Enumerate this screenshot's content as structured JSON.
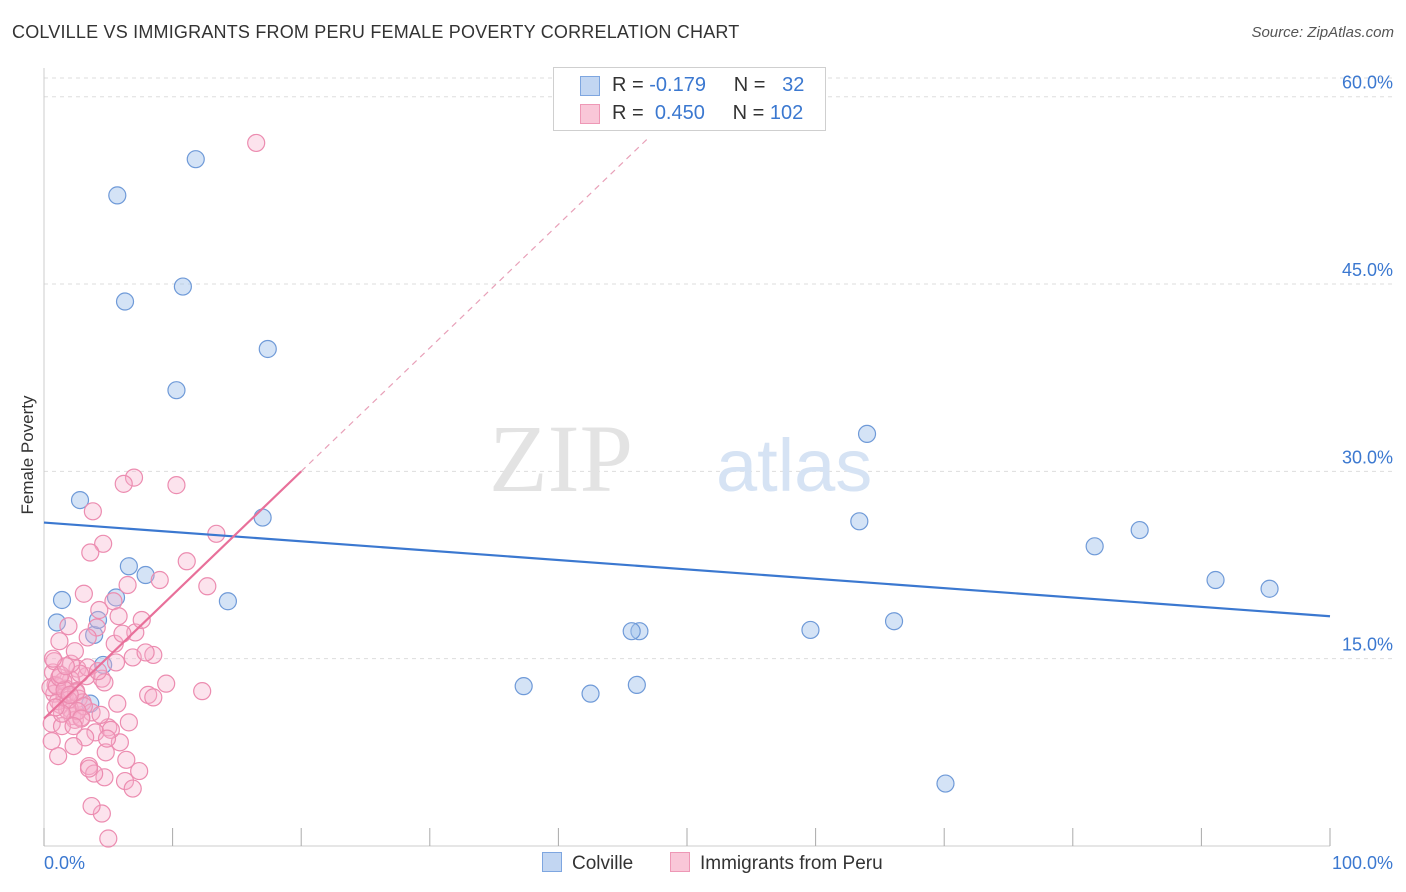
{
  "title": "COLVILLE VS IMMIGRANTS FROM PERU FEMALE POVERTY CORRELATION CHART",
  "source": "Source: ZipAtlas.com",
  "watermark": {
    "zip": "ZIP",
    "atlas": "atlas"
  },
  "legend": {
    "r_label": "R =",
    "n_label": "N =",
    "colville": {
      "r": "-0.179",
      "n": "32"
    },
    "peru": {
      "r": "0.450",
      "n": "102"
    }
  },
  "colors": {
    "colville": "#3b78d0",
    "peru": "#e8709a",
    "tick_label": "#3b78d0"
  },
  "chart_data": {
    "type": "scatter",
    "title": "COLVILLE VS IMMIGRANTS FROM PERU FEMALE POVERTY CORRELATION CHART",
    "xlabel": "",
    "ylabel": "Female Poverty",
    "xlim": [
      0,
      100
    ],
    "ylim": [
      0,
      61.5
    ],
    "x_tick_labels": [
      "0.0%",
      "100.0%"
    ],
    "y_ticks": [
      15,
      30,
      45,
      60
    ],
    "y_tick_labels": [
      "15.0%",
      "30.0%",
      "45.0%",
      "60.0%"
    ],
    "legend_position": "top-center",
    "series": [
      {
        "name": "Colville",
        "color": "#3b78d0",
        "trend": {
          "x0": 0,
          "y0": 25.9,
          "x1": 100,
          "y1": 18.4
        },
        "x": [
          11.8,
          5.7,
          10.8,
          6.3,
          17.4,
          10.3,
          2.8,
          17.0,
          1.4,
          6.6,
          7.9,
          14.3,
          5.6,
          3.9,
          1.0,
          4.2,
          4.6,
          3.6,
          42.5,
          37.3,
          46.3,
          59.6,
          64.0,
          95.3,
          85.2,
          70.1,
          91.1,
          66.1,
          81.7,
          63.4,
          45.7,
          46.1
        ],
        "y": [
          55.0,
          52.1,
          44.8,
          43.6,
          39.8,
          36.5,
          27.7,
          26.3,
          19.7,
          22.4,
          21.7,
          19.6,
          19.9,
          16.9,
          17.9,
          18.1,
          14.5,
          11.4,
          12.2,
          12.8,
          17.2,
          17.3,
          33.0,
          20.6,
          25.3,
          5.0,
          21.3,
          18.0,
          24.0,
          26.0,
          17.2,
          12.9
        ]
      },
      {
        "name": "Immigrants from Peru",
        "color": "#e8709a",
        "trend": {
          "x0": 0,
          "y0": 10.2,
          "x1": 20,
          "y1": 30.0,
          "dashed_to_x": 47,
          "dashed_to_y": 56.7
        },
        "x": [
          16.5,
          7.0,
          10.3,
          6.2,
          3.8,
          4.6,
          3.6,
          13.4,
          11.1,
          9.0,
          12.7,
          6.5,
          3.1,
          5.4,
          5.8,
          4.3,
          4.1,
          7.1,
          1.9,
          3.4,
          5.6,
          8.5,
          1.2,
          6.9,
          7.9,
          4.5,
          8.1,
          0.7,
          2.6,
          3.3,
          2.1,
          4.7,
          0.9,
          1.7,
          2.5,
          0.8,
          1.6,
          2.7,
          3.0,
          1.3,
          2.0,
          3.7,
          2.2,
          2.4,
          0.6,
          1.4,
          0.5,
          1.1,
          1.8,
          2.9,
          5.0,
          4.0,
          3.2,
          5.9,
          2.3,
          4.8,
          6.4,
          3.5,
          7.4,
          12.3,
          9.5,
          8.5,
          5.7,
          4.4,
          6.6,
          5.2,
          4.9,
          3.4,
          2.8,
          4.2,
          2.1,
          1.5,
          1.0,
          5.5,
          6.1,
          7.6,
          4.7,
          6.3,
          6.9,
          3.9,
          2.5,
          1.9,
          3.1,
          1.2,
          2.6,
          1.6,
          0.8,
          2.9,
          4.5,
          3.7,
          2.3,
          1.4,
          0.9,
          2.0,
          1.3,
          1.7,
          0.7,
          2.4,
          3.5,
          5.0,
          1.1,
          0.6
        ],
        "y": [
          56.3,
          29.5,
          28.9,
          29.0,
          26.8,
          24.2,
          23.5,
          25.0,
          22.8,
          21.3,
          20.8,
          20.9,
          20.2,
          19.6,
          18.4,
          18.9,
          17.5,
          17.1,
          17.6,
          16.7,
          14.7,
          15.3,
          16.4,
          15.1,
          15.5,
          13.4,
          12.1,
          13.9,
          14.2,
          13.6,
          13.3,
          13.1,
          12.9,
          12.6,
          12.4,
          12.2,
          12.0,
          11.8,
          11.5,
          11.3,
          11.0,
          10.7,
          10.4,
          10.1,
          9.8,
          9.6,
          12.7,
          11.6,
          10.9,
          10.3,
          9.5,
          9.1,
          8.7,
          8.3,
          8.0,
          7.5,
          6.9,
          6.4,
          6.0,
          12.4,
          13.0,
          11.9,
          11.4,
          10.5,
          9.9,
          9.3,
          8.6,
          14.3,
          13.8,
          14.0,
          14.6,
          13.2,
          12.8,
          16.2,
          17.0,
          18.1,
          5.5,
          5.2,
          4.6,
          5.8,
          12.3,
          11.7,
          11.2,
          13.5,
          10.8,
          12.5,
          14.8,
          10.2,
          2.6,
          3.2,
          9.6,
          10.6,
          11.1,
          12.1,
          13.7,
          14.4,
          15.0,
          15.6,
          6.2,
          0.6,
          7.2,
          8.4
        ]
      }
    ]
  }
}
